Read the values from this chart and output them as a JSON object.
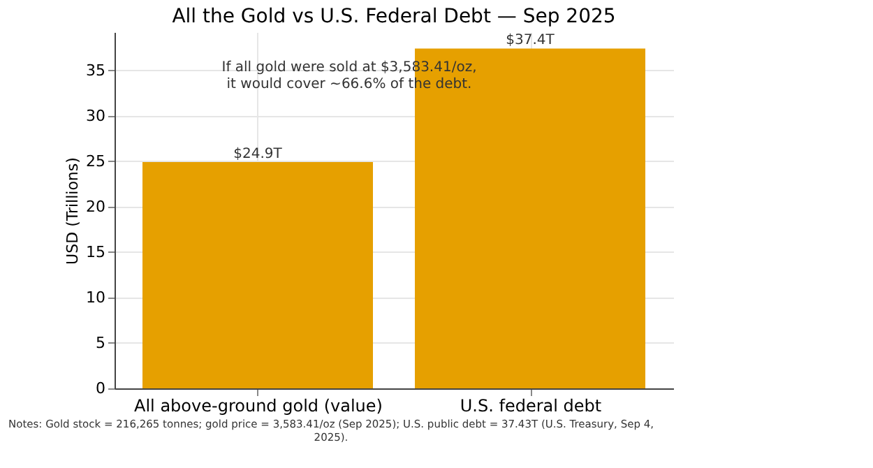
{
  "chart_data": {
    "type": "bar",
    "title": "All the Gold vs U.S. Federal Debt — Sep 2025",
    "ylabel": "USD (Trillions)",
    "categories": [
      "All above-ground gold (value)",
      "U.S. federal debt"
    ],
    "values": [
      24.9,
      37.4
    ],
    "color": "#e6a000",
    "value_labels": [
      "$24.9T",
      "$37.4T"
    ],
    "ylim": [
      0,
      39.2
    ],
    "yticks": [
      0,
      5,
      10,
      15,
      20,
      25,
      30,
      35
    ],
    "grid": true,
    "annotations": [
      "If all gold were sold at $3,583.41/oz,\nit would cover ~66.6% of the debt.",
      "Notes: Gold stock = 216,265 tonnes; gold price = 3,583.41/oz (Sep 2025); U.S. public debt = 37.43T (U.S. Treasury, Sep 4,\n2025)."
    ]
  }
}
